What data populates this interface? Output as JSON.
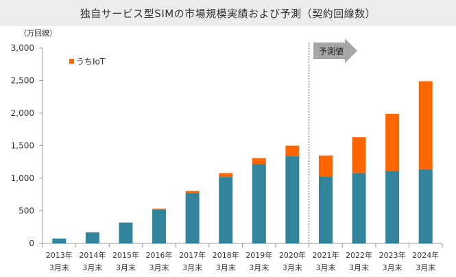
{
  "chart_data": {
    "type": "bar",
    "title": "独自サービス型SIMの市場規模実績および予測（契約回線数）",
    "unit_label": "（万回線）",
    "y_range": [
      0,
      3000
    ],
    "y_ticks": [
      "0",
      "500",
      "1,000",
      "1,500",
      "2,000",
      "2,500",
      "3,000"
    ],
    "y_tick_values": [
      0,
      500,
      1000,
      1500,
      2000,
      2500,
      3000
    ],
    "grid": false,
    "legend_position": "top-left",
    "categories": [
      [
        "2013年",
        "3月末"
      ],
      [
        "2014年",
        "3月末"
      ],
      [
        "2015年",
        "3月末"
      ],
      [
        "2016年",
        "3月末"
      ],
      [
        "2017年",
        "3月末"
      ],
      [
        "2018年",
        "3月末"
      ],
      [
        "2019年",
        "3月末"
      ],
      [
        "2020年",
        "3月末"
      ],
      [
        "2021年",
        "3月末"
      ],
      [
        "2022年",
        "3月末"
      ],
      [
        "2023年",
        "3月末"
      ],
      [
        "2024年",
        "3月末"
      ]
    ],
    "series": [
      {
        "values": [
          75,
          170,
          320,
          520,
          775,
          1020,
          1220,
          1340,
          1030,
          1080,
          1110,
          1140
        ]
      },
      {
        "name": "うちIoT",
        "values": [
          0,
          0,
          0,
          12,
          30,
          60,
          90,
          160,
          320,
          550,
          880,
          1350
        ]
      }
    ],
    "colors": {
      "base": "#31849b",
      "iot": "#ff6600",
      "arrow": "#a6a6a6",
      "axis": "#999999",
      "divider": "#595959"
    },
    "forecast": {
      "label": "予測値",
      "start_index": 8
    }
  }
}
